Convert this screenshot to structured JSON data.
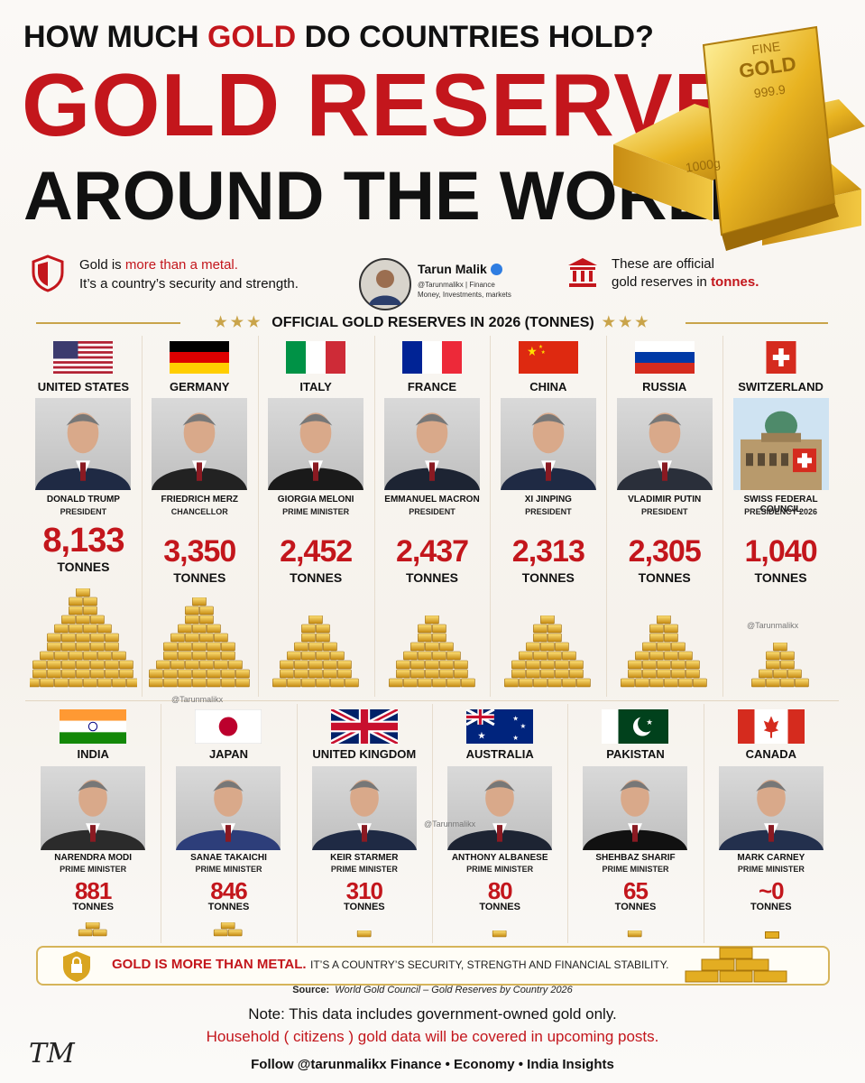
{
  "header": {
    "question_pre": "HOW MUCH",
    "question_gold": "GOLD",
    "question_post": "DO COUNTRIES HOLD?",
    "title_line1": "GOLD RESERVES",
    "title_line2": "AROUND THE WORLD"
  },
  "gold_bar": {
    "line1": "FINE",
    "line2": "GOLD",
    "line3": "999.9",
    "weight": "1000g"
  },
  "info_left": {
    "text1": "Gold is",
    "highlight": "more than a metal.",
    "text2": "It’s a country’s security and strength."
  },
  "author": {
    "name": "Tarun Malik",
    "handle": "@Tarunmalikx | Finance",
    "tagline": "Money, Investments, markets"
  },
  "info_right": {
    "text1": "These are official",
    "text2": "gold reserves in",
    "highlight": "tonnes."
  },
  "section_title": "OFFICIAL GOLD RESERVES IN 2026 (TONNES)",
  "countries": [
    {
      "country": "UNITED STATES",
      "leader": "DONALD TRUMP",
      "role": "PRESIDENT",
      "reserve": "8,133",
      "unit": "TONNES"
    },
    {
      "country": "GERMANY",
      "leader": "FRIEDRICH MERZ",
      "role": "CHANCELLOR",
      "reserve": "3,350",
      "unit": "TONNES"
    },
    {
      "country": "ITALY",
      "leader": "GIORGIA MELONI",
      "role": "PRIME MINISTER",
      "reserve": "2,452",
      "unit": "TONNES"
    },
    {
      "country": "FRANCE",
      "leader": "EMMANUEL MACRON",
      "role": "PRESIDENT",
      "reserve": "2,437",
      "unit": "TONNES"
    },
    {
      "country": "CHINA",
      "leader": "XI JINPING",
      "role": "PRESIDENT",
      "reserve": "2,313",
      "unit": "TONNES"
    },
    {
      "country": "RUSSIA",
      "leader": "VLADIMIR PUTIN",
      "role": "PRESIDENT",
      "reserve": "2,305",
      "unit": "TONNES"
    },
    {
      "country": "SWITZERLAND",
      "leader": "SWISS FEDERAL COUNCIL",
      "role": "PRESIDENCY 2026",
      "reserve": "1,040",
      "unit": "TONNES"
    },
    {
      "country": "INDIA",
      "leader": "NARENDRA MODI",
      "role": "PRIME MINISTER",
      "reserve": "881",
      "unit": "TONNES"
    },
    {
      "country": "JAPAN",
      "leader": "SANAE TAKAICHI",
      "role": "PRIME MINISTER",
      "reserve": "846",
      "unit": "TONNES"
    },
    {
      "country": "UNITED KINGDOM",
      "leader": "KEIR STARMER",
      "role": "PRIME MINISTER",
      "reserve": "310",
      "unit": "TONNES"
    },
    {
      "country": "AUSTRALIA",
      "leader": "ANTHONY ALBANESE",
      "role": "PRIME MINISTER",
      "reserve": "80",
      "unit": "TONNES"
    },
    {
      "country": "PAKISTAN",
      "leader": "SHEHBAZ SHARIF",
      "role": "PRIME MINISTER",
      "reserve": "65",
      "unit": "TONNES"
    },
    {
      "country": "CANADA",
      "leader": "MARK CARNEY",
      "role": "PRIME MINISTER",
      "reserve": "~0",
      "unit": "TONNES"
    }
  ],
  "watermarks": [
    "@Tarunmalikx",
    "@Tarunmalikx",
    "@Tarunmalikx"
  ],
  "banner": {
    "bold": "GOLD IS MORE THAN METAL.",
    "text": "IT’S A COUNTRY’S SECURITY, STRENGTH AND FINANCIAL STABILITY."
  },
  "source": {
    "label": "Source:",
    "text": "World Gold Council – Gold Reserves by Country 2026"
  },
  "note": {
    "line1": "Note: This data includes government-owned gold only.",
    "line2": "Household ( citizens ) gold data will be covered in upcoming posts."
  },
  "footer": "Follow @tarunmalikx Finance • Economy • India Insights",
  "signature": "TM"
}
